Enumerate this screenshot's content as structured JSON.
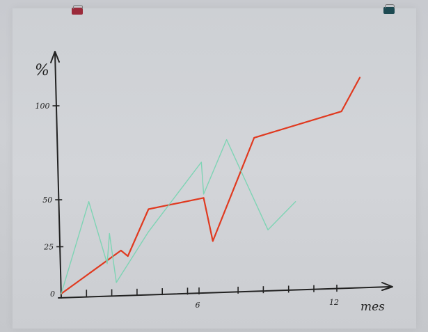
{
  "chart_data": {
    "type": "line",
    "xlabel": "mes",
    "ylabel": "%",
    "xlim": [
      0,
      13.6
    ],
    "ylim": [
      0,
      120
    ],
    "x_ticks": [
      {
        "value": 1.1,
        "label": ""
      },
      {
        "value": 2.2,
        "label": ""
      },
      {
        "value": 3.3,
        "label": ""
      },
      {
        "value": 4.4,
        "label": ""
      },
      {
        "value": 5.5,
        "label": ""
      },
      {
        "value": 6,
        "label": "6"
      },
      {
        "value": 7.7,
        "label": ""
      },
      {
        "value": 8.8,
        "label": ""
      },
      {
        "value": 9.9,
        "label": ""
      },
      {
        "value": 11,
        "label": ""
      },
      {
        "value": 12,
        "label": "12"
      }
    ],
    "y_ticks": [
      {
        "value": 0,
        "label": "0"
      },
      {
        "value": 25,
        "label": "25"
      },
      {
        "value": 50,
        "label": "50"
      },
      {
        "value": 100,
        "label": "100"
      }
    ],
    "grid": false,
    "series": [
      {
        "color": "#e0391f",
        "points": [
          [
            0,
            0
          ],
          [
            2.6,
            23
          ],
          [
            2.9,
            20
          ],
          [
            3.8,
            45
          ],
          [
            4.6,
            47
          ],
          [
            6.2,
            51
          ],
          [
            6.6,
            28
          ],
          [
            8.4,
            83
          ],
          [
            12.2,
            97
          ],
          [
            13,
            115
          ]
        ]
      },
      {
        "color": "#74d4b0",
        "points": [
          [
            0,
            0
          ],
          [
            1.2,
            49
          ],
          [
            2.0,
            16
          ],
          [
            2.1,
            32
          ],
          [
            2.4,
            6
          ],
          [
            3.8,
            33
          ],
          [
            6.1,
            70
          ],
          [
            6.2,
            53
          ],
          [
            7.2,
            82
          ],
          [
            9.0,
            34
          ],
          [
            10.2,
            49
          ]
        ]
      }
    ]
  }
}
